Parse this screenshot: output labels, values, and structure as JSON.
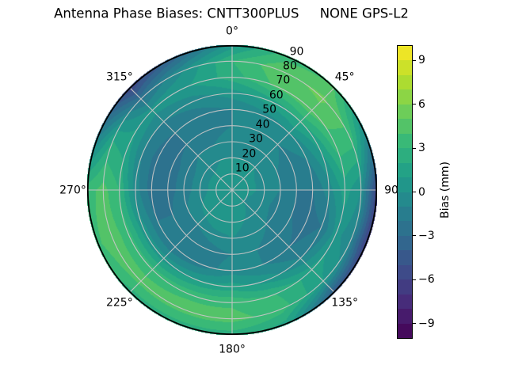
{
  "chart_data": {
    "type": "heatmap",
    "projection": "polar",
    "title": "Antenna Phase Biases: CNTT300PLUS     NONE GPS-L2",
    "theta_direction": "clockwise",
    "theta_zero_location": "top",
    "theta_tick_labels": [
      {
        "angle_deg": 0,
        "text": "0°"
      },
      {
        "angle_deg": 45,
        "text": "45°"
      },
      {
        "angle_deg": 90,
        "text": "90"
      },
      {
        "angle_deg": 135,
        "text": "135°"
      },
      {
        "angle_deg": 180,
        "text": "180°"
      },
      {
        "angle_deg": 225,
        "text": "225°"
      },
      {
        "angle_deg": 270,
        "text": "270°"
      },
      {
        "angle_deg": 315,
        "text": "315°"
      }
    ],
    "r_tick_labels": [
      {
        "r_deg": 10,
        "text": "10"
      },
      {
        "r_deg": 20,
        "text": "20"
      },
      {
        "r_deg": 30,
        "text": "30"
      },
      {
        "r_deg": 40,
        "text": "40"
      },
      {
        "r_deg": 50,
        "text": "50"
      },
      {
        "r_deg": 60,
        "text": "60"
      },
      {
        "r_deg": 70,
        "text": "70"
      },
      {
        "r_deg": 80,
        "text": "80"
      },
      {
        "r_deg": 90,
        "text": "90"
      }
    ],
    "r_max": 90,
    "grid": true,
    "grid_color": "#c6c6c6",
    "azimuth_samples_deg": [
      0,
      22.5,
      45,
      67.5,
      90,
      112.5,
      135,
      157.5,
      180,
      202.5,
      225,
      247.5,
      270,
      292.5,
      315,
      337.5
    ],
    "radius_samples_deg": [
      0,
      10,
      20,
      30,
      40,
      50,
      60,
      70,
      80,
      90
    ],
    "values_mm": [
      [
        0.5,
        0.5,
        0.0,
        -0.5,
        -1.0,
        -1.0,
        0.5,
        2.5,
        3.0,
        0.5
      ],
      [
        0.5,
        0.5,
        0.0,
        -0.5,
        -1.0,
        -0.5,
        1.5,
        4.2,
        4.8,
        3.5
      ],
      [
        0.5,
        0.5,
        0.0,
        -0.5,
        -1.0,
        0.0,
        2.2,
        4.6,
        5.2,
        4.0
      ],
      [
        0.5,
        0.5,
        -0.5,
        -1.0,
        -1.5,
        -1.0,
        1.0,
        3.5,
        3.5,
        -0.5
      ],
      [
        0.5,
        0.5,
        -0.5,
        -1.0,
        -2.0,
        -2.0,
        -0.5,
        1.5,
        0.0,
        -6.0
      ],
      [
        0.5,
        0.0,
        -0.5,
        -1.5,
        -2.0,
        -2.5,
        -2.0,
        0.5,
        -1.0,
        -6.5
      ],
      [
        0.5,
        0.0,
        -0.5,
        -1.0,
        -1.5,
        -2.0,
        -1.0,
        1.5,
        1.0,
        -4.5
      ],
      [
        0.5,
        0.5,
        0.0,
        -0.5,
        -1.0,
        -1.0,
        0.5,
        3.0,
        3.5,
        1.5
      ],
      [
        0.5,
        1.0,
        0.5,
        0.0,
        -1.0,
        -0.5,
        1.5,
        3.8,
        4.4,
        2.5
      ],
      [
        0.5,
        1.0,
        1.0,
        -0.5,
        -1.5,
        -1.5,
        1.0,
        3.8,
        4.4,
        2.5
      ],
      [
        0.5,
        1.0,
        0.5,
        -1.0,
        -2.0,
        -2.0,
        0.5,
        3.5,
        4.4,
        2.5
      ],
      [
        0.5,
        0.5,
        0.0,
        -1.0,
        -2.0,
        -2.0,
        0.5,
        3.5,
        4.6,
        3.8
      ],
      [
        0.5,
        0.5,
        -0.5,
        -1.5,
        -2.5,
        -2.5,
        -0.5,
        3.0,
        4.4,
        3.5
      ],
      [
        0.5,
        0.5,
        -0.5,
        -1.5,
        -2.5,
        -2.5,
        -1.0,
        1.5,
        2.0,
        -1.5
      ],
      [
        0.5,
        0.5,
        -0.5,
        -1.0,
        -2.0,
        -2.0,
        -1.0,
        0.5,
        -2.5,
        -6.0
      ],
      [
        0.5,
        0.5,
        0.0,
        -1.0,
        -1.5,
        -1.5,
        -0.5,
        1.0,
        0.0,
        -3.5
      ]
    ],
    "colormap": "viridis",
    "colormap_stops": [
      "#440154",
      "#482878",
      "#3e4a89",
      "#31688e",
      "#26828e",
      "#1f9e89",
      "#35b779",
      "#6ece58",
      "#b5de2b",
      "#fde725"
    ],
    "vmin": -10,
    "vmax": 10,
    "levels_step_mm": 1,
    "colorbar": {
      "label": "Bias (mm)",
      "ticks": [
        9,
        6,
        3,
        0,
        -3,
        -6,
        -9
      ]
    }
  }
}
